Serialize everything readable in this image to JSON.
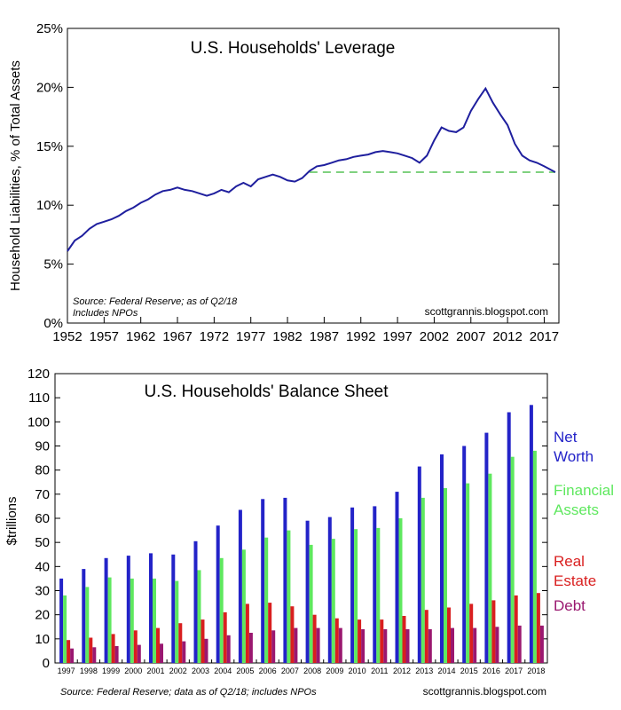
{
  "chart_data": [
    {
      "type": "line",
      "title": "U.S. Households' Leverage",
      "ylabel": "Household Liabilities, % of Total Assets",
      "xlabel": "",
      "xlim": [
        1952,
        2019
      ],
      "ylim": [
        0,
        25
      ],
      "y_tick_labels": [
        "0%",
        "5%",
        "10%",
        "15%",
        "20%",
        "25%"
      ],
      "y_tick_values": [
        0,
        5,
        10,
        15,
        20,
        25
      ],
      "x_tick_labels": [
        "1952",
        "1957",
        "1962",
        "1967",
        "1972",
        "1977",
        "1982",
        "1987",
        "1992",
        "1997",
        "2002",
        "2007",
        "2012",
        "2017"
      ],
      "x_tick_values": [
        1952,
        1957,
        1962,
        1967,
        1972,
        1977,
        1982,
        1987,
        1992,
        1997,
        2002,
        2007,
        2012,
        2017
      ],
      "source": "Source: Federal Reserve; as of Q2/18",
      "source_line2": "Includes NPOs",
      "credit": "scottgrannis.blogspot.com",
      "line_color": "#1f1f9e",
      "reference_line": {
        "y": 12.8,
        "x_start": 1985,
        "x_end": 2018.5,
        "color": "#7fd17f",
        "style": "dashed"
      },
      "series": [
        {
          "x": [
            1952,
            1953,
            1954,
            1955,
            1956,
            1957,
            1958,
            1959,
            1960,
            1961,
            1962,
            1963,
            1964,
            1965,
            1966,
            1967,
            1968,
            1969,
            1970,
            1971,
            1972,
            1973,
            1974,
            1975,
            1976,
            1977,
            1978,
            1979,
            1980,
            1981,
            1982,
            1983,
            1984,
            1985,
            1986,
            1987,
            1988,
            1989,
            1990,
            1991,
            1992,
            1993,
            1994,
            1995,
            1996,
            1997,
            1998,
            1999,
            2000,
            2001,
            2002,
            2003,
            2004,
            2005,
            2006,
            2007,
            2008,
            2009,
            2010,
            2011,
            2012,
            2013,
            2014,
            2015,
            2016,
            2017,
            2018.5
          ],
          "values": [
            6.1,
            7.0,
            7.4,
            8.0,
            8.4,
            8.6,
            8.8,
            9.1,
            9.5,
            9.8,
            10.2,
            10.5,
            10.9,
            11.2,
            11.3,
            11.5,
            11.3,
            11.2,
            11.0,
            10.8,
            11.0,
            11.3,
            11.1,
            11.6,
            11.9,
            11.6,
            12.2,
            12.4,
            12.6,
            12.4,
            12.1,
            12.0,
            12.3,
            12.9,
            13.3,
            13.4,
            13.6,
            13.8,
            13.9,
            14.1,
            14.2,
            14.3,
            14.5,
            14.6,
            14.5,
            14.4,
            14.2,
            14.0,
            13.6,
            14.2,
            15.5,
            16.6,
            16.3,
            16.2,
            16.6,
            18.0,
            19.0,
            19.9,
            18.7,
            17.7,
            16.8,
            15.2,
            14.2,
            13.8,
            13.6,
            13.3,
            12.8
          ]
        }
      ]
    },
    {
      "type": "bar",
      "title": "U.S. Households' Balance Sheet",
      "ylabel": "$trillions",
      "xlabel": "",
      "ylim": [
        0,
        120
      ],
      "y_tick_values": [
        0,
        10,
        20,
        30,
        40,
        50,
        60,
        70,
        80,
        90,
        100,
        110,
        120
      ],
      "y_tick_labels": [
        "0",
        "10",
        "20",
        "30",
        "40",
        "50",
        "60",
        "70",
        "80",
        "90",
        "100",
        "110",
        "120"
      ],
      "categories": [
        "1997",
        "1998",
        "1999",
        "2000",
        "2001",
        "2002",
        "2003",
        "2004",
        "2005",
        "2006",
        "2007",
        "2008",
        "2009",
        "2010",
        "2011",
        "2012",
        "2013",
        "2014",
        "2015",
        "2016",
        "2017",
        "2018"
      ],
      "source": "Source: Federal Reserve; data as of Q2/18; includes NPOs",
      "credit": "scottgrannis.blogspot.com",
      "series": [
        {
          "name": "Net Worth",
          "legend_lines": [
            "Net",
            "Worth"
          ],
          "color": "#2323c8",
          "values": [
            35,
            39,
            43.5,
            44.5,
            45.5,
            45,
            50.5,
            57,
            63.5,
            68,
            68.5,
            59,
            60.5,
            64.5,
            65,
            71,
            81.5,
            86.5,
            90,
            95.5,
            104,
            107
          ]
        },
        {
          "name": "Financial Assets",
          "legend_lines": [
            "Financial",
            "Assets"
          ],
          "color": "#5fe85f",
          "values": [
            28,
            31.5,
            35.5,
            35,
            35,
            34,
            38.5,
            43.5,
            47,
            52,
            55,
            49,
            51.5,
            55.5,
            56,
            60,
            68.5,
            72.5,
            74.5,
            78.5,
            85.5,
            88
          ]
        },
        {
          "name": "Real Estate",
          "legend_lines": [
            "Real",
            "Estate"
          ],
          "color": "#d91f1f",
          "values": [
            9.5,
            10.5,
            12,
            13.5,
            14.5,
            16.5,
            18,
            21,
            24.5,
            25,
            23.5,
            20,
            18.5,
            18,
            18,
            19.5,
            22,
            23,
            24.5,
            26,
            28,
            29
          ]
        },
        {
          "name": "Debt",
          "legend_lines": [
            "Debt"
          ],
          "color": "#9a1870",
          "values": [
            6,
            6.5,
            7,
            7.5,
            8,
            9,
            10,
            11.5,
            12.5,
            13.5,
            14.5,
            14.5,
            14.5,
            14,
            14,
            14,
            14,
            14.5,
            14.5,
            15,
            15.5,
            15.5
          ]
        }
      ]
    }
  ]
}
